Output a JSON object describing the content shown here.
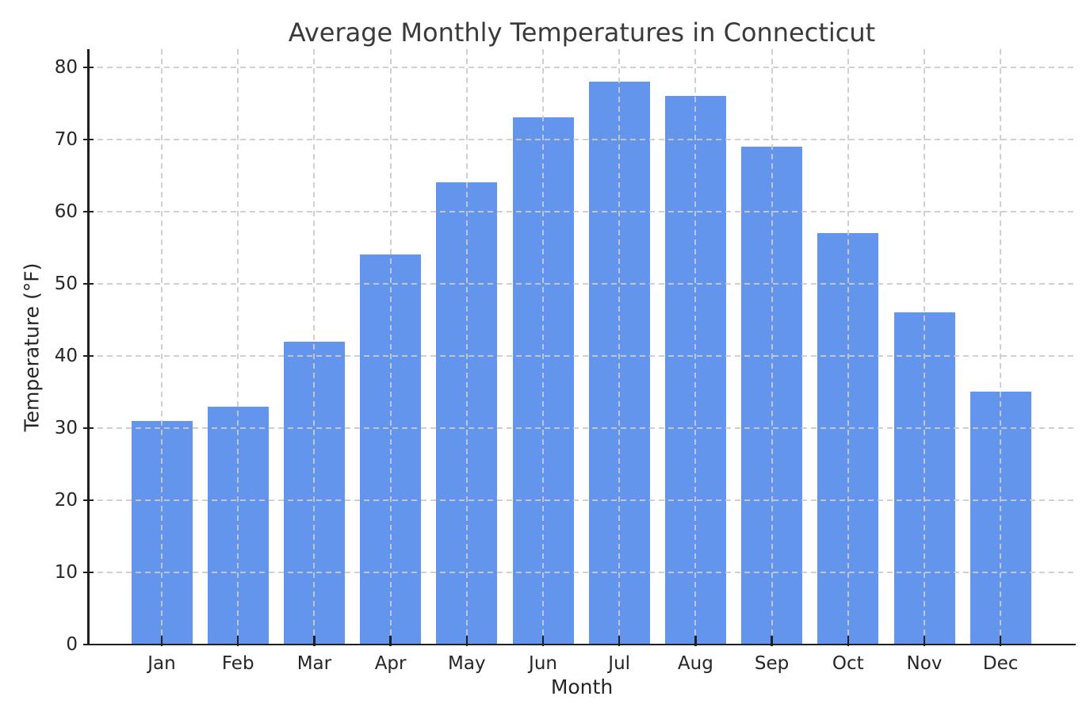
{
  "chart_data": {
    "type": "bar",
    "title": "Average Monthly Temperatures in Connecticut",
    "xlabel": "Month",
    "ylabel": "Temperature (°F)",
    "categories": [
      "Jan",
      "Feb",
      "Mar",
      "Apr",
      "May",
      "Jun",
      "Jul",
      "Aug",
      "Sep",
      "Oct",
      "Nov",
      "Dec"
    ],
    "values": [
      31,
      33,
      42,
      54,
      64,
      73,
      78,
      76,
      69,
      57,
      46,
      35
    ],
    "yticks": [
      0,
      10,
      20,
      30,
      40,
      50,
      60,
      70,
      80
    ],
    "ylim": [
      0,
      82.5
    ],
    "bar_color": "#6495ED",
    "grid": true,
    "grid_style": "dashed",
    "grid_color": "#cbcbcb",
    "background": "#ffffff",
    "text_color": "#262626",
    "legend": null
  }
}
